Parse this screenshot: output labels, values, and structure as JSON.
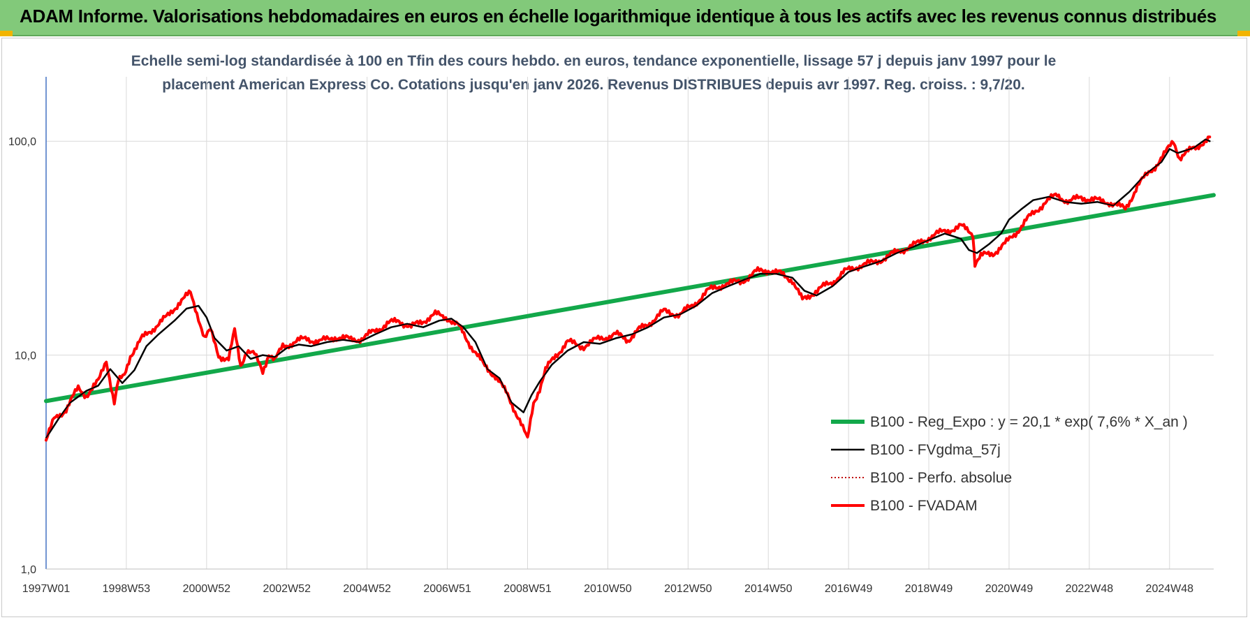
{
  "header": {
    "title": "ADAM Informe. Valorisations hebdomadaires en euros en échelle logarithmique identique à tous les actifs avec les revenus connus distribués"
  },
  "colors": {
    "banner": "#82c97a",
    "subtitle": "#44546a",
    "reg_expo": "#12a84a",
    "fvgdma": "#000000",
    "perfo": "#c00000",
    "fvadam": "#ff0000",
    "corner": "#f2b400"
  },
  "chart_data": {
    "type": "line",
    "title_line1": "Echelle semi-log standardisée à 100 en Tfin des cours hebdo. en euros, tendance exponentielle, lissage 57 j depuis janv 1997 pour le",
    "title_line2": "placement American Express Co. Cotations jusqu'en janv 2026. Revenus DISTRIBUES depuis avr 1997. Reg. croiss. : 9,7/20.",
    "y_scale": "log",
    "ylim": [
      1,
      200
    ],
    "y_ticks": [
      {
        "value": 1,
        "label": "1,0"
      },
      {
        "value": 10,
        "label": "10,0"
      },
      {
        "value": 100,
        "label": "100,0"
      }
    ],
    "xlim": [
      1997.0,
      2026.1
    ],
    "x_ticks": [
      {
        "value": 1997.0,
        "label": "1997W01"
      },
      {
        "value": 1999.0,
        "label": "1998W53"
      },
      {
        "value": 2001.0,
        "label": "2000W52"
      },
      {
        "value": 2003.0,
        "label": "2002W52"
      },
      {
        "value": 2005.0,
        "label": "2004W52"
      },
      {
        "value": 2007.0,
        "label": "2006W51"
      },
      {
        "value": 2009.0,
        "label": "2008W51"
      },
      {
        "value": 2011.0,
        "label": "2010W50"
      },
      {
        "value": 2013.0,
        "label": "2012W50"
      },
      {
        "value": 2015.0,
        "label": "2014W50"
      },
      {
        "value": 2017.0,
        "label": "2016W49"
      },
      {
        "value": 2019.0,
        "label": "2018W49"
      },
      {
        "value": 2021.0,
        "label": "2020W49"
      },
      {
        "value": 2023.0,
        "label": "2022W48"
      },
      {
        "value": 2025.0,
        "label": "2024W48"
      }
    ],
    "grid": true,
    "legend_position": "bottom-right",
    "series": [
      {
        "name": "B100 - Reg_Expo : y = 20,1 * exp( 7,6% *  X_an )",
        "style": "thick-green",
        "x": [
          1997.0,
          2026.1
        ],
        "y": [
          6.1,
          56.0
        ]
      },
      {
        "name": "B100 - FVgdma_57j",
        "style": "black",
        "x": [
          1997.0,
          1997.3,
          1997.6,
          1998.0,
          1998.3,
          1998.6,
          1998.9,
          1999.2,
          1999.5,
          1999.8,
          2000.2,
          2000.5,
          2000.8,
          2001.0,
          2001.2,
          2001.5,
          2001.8,
          2002.1,
          2002.4,
          2002.7,
          2003.0,
          2003.3,
          2003.6,
          2004.0,
          2004.4,
          2004.8,
          2005.2,
          2005.6,
          2006.0,
          2006.4,
          2006.8,
          2007.1,
          2007.4,
          2007.7,
          2008.0,
          2008.3,
          2008.6,
          2008.9,
          2009.1,
          2009.3,
          2009.6,
          2010.0,
          2010.4,
          2010.8,
          2011.2,
          2011.6,
          2012.0,
          2012.4,
          2012.8,
          2013.2,
          2013.6,
          2014.0,
          2014.4,
          2014.8,
          2015.2,
          2015.6,
          2015.9,
          2016.2,
          2016.6,
          2017.0,
          2017.4,
          2017.8,
          2018.2,
          2018.6,
          2019.0,
          2019.4,
          2019.8,
          2020.0,
          2020.2,
          2020.5,
          2020.8,
          2021.0,
          2021.3,
          2021.6,
          2022.0,
          2022.4,
          2022.8,
          2023.2,
          2023.6,
          2024.0,
          2024.4,
          2024.8,
          2025.0,
          2025.2,
          2025.6,
          2025.9,
          2026.0
        ],
        "y": [
          4.1,
          5.0,
          6.0,
          6.8,
          7.2,
          8.6,
          7.4,
          8.5,
          11.0,
          12.5,
          14.5,
          16.5,
          17.0,
          15.0,
          12.0,
          10.5,
          11.0,
          9.6,
          10.0,
          9.8,
          10.8,
          11.2,
          11.0,
          11.5,
          11.8,
          11.5,
          12.5,
          13.5,
          14.0,
          13.5,
          14.5,
          14.8,
          13.5,
          11.5,
          8.6,
          7.8,
          6.0,
          5.4,
          6.5,
          7.5,
          9.0,
          10.5,
          11.5,
          11.3,
          12.0,
          12.5,
          13.5,
          15.0,
          15.5,
          17.0,
          19.5,
          21.0,
          22.5,
          24.0,
          24.0,
          23.0,
          20.0,
          19.0,
          21.0,
          24.5,
          26.0,
          27.5,
          30.0,
          32.0,
          34.5,
          37.0,
          35.0,
          31.0,
          30.0,
          33.0,
          37.0,
          43.0,
          48.0,
          53.0,
          55.0,
          52.0,
          51.0,
          52.0,
          50.0,
          58.0,
          70.0,
          80.0,
          92.0,
          88.0,
          93.0,
          102.0,
          100.0
        ]
      },
      {
        "name": "B100 - Perfo. absolue",
        "style": "dotted-darkred",
        "x": [],
        "y": []
      },
      {
        "name": "B100 - FVADAM",
        "style": "thick-red",
        "x": [
          1997.0,
          1997.2,
          1997.5,
          1997.8,
          1998.0,
          1998.3,
          1998.5,
          1998.7,
          1998.8,
          1998.95,
          1999.1,
          1999.4,
          1999.7,
          2000.0,
          2000.3,
          2000.6,
          2000.8,
          2000.95,
          2001.1,
          2001.3,
          2001.55,
          2001.7,
          2001.85,
          2002.0,
          2002.2,
          2002.4,
          2002.55,
          2002.7,
          2002.9,
          2003.2,
          2003.5,
          2003.8,
          2004.2,
          2004.6,
          2004.9,
          2005.2,
          2005.5,
          2005.8,
          2006.1,
          2006.4,
          2006.7,
          2007.0,
          2007.3,
          2007.6,
          2007.9,
          2008.2,
          2008.5,
          2008.8,
          2009.0,
          2009.15,
          2009.3,
          2009.45,
          2009.7,
          2010.0,
          2010.4,
          2010.8,
          2011.2,
          2011.5,
          2011.75,
          2012.0,
          2012.4,
          2012.8,
          2013.1,
          2013.5,
          2013.9,
          2014.3,
          2014.7,
          2015.0,
          2015.3,
          2015.6,
          2015.85,
          2016.1,
          2016.3,
          2016.6,
          2016.9,
          2017.2,
          2017.6,
          2018.0,
          2018.3,
          2018.7,
          2019.0,
          2019.4,
          2019.8,
          2020.1,
          2020.15,
          2020.3,
          2020.6,
          2020.9,
          2021.2,
          2021.5,
          2021.9,
          2022.2,
          2022.5,
          2022.8,
          2023.1,
          2023.5,
          2023.9,
          2024.2,
          2024.6,
          2024.9,
          2025.1,
          2025.25,
          2025.5,
          2025.8,
          2026.0
        ],
        "y": [
          4.0,
          5.0,
          5.6,
          7.0,
          6.5,
          7.5,
          9.5,
          6.0,
          7.5,
          8.0,
          10.0,
          12.0,
          13.5,
          15.0,
          17.5,
          19.5,
          15.0,
          12.0,
          13.0,
          10.0,
          9.5,
          13.0,
          9.0,
          10.5,
          10.0,
          8.4,
          10.2,
          9.4,
          11.0,
          11.5,
          12.0,
          11.5,
          12.2,
          11.8,
          12.0,
          13.0,
          14.0,
          14.5,
          13.5,
          14.5,
          15.5,
          15.0,
          13.5,
          11.0,
          9.0,
          8.0,
          6.5,
          5.0,
          4.0,
          6.0,
          7.0,
          8.5,
          10.0,
          11.5,
          11.0,
          12.0,
          12.5,
          11.8,
          13.0,
          14.0,
          16.0,
          15.5,
          17.0,
          20.0,
          21.5,
          22.0,
          24.5,
          25.0,
          24.0,
          22.5,
          18.0,
          19.5,
          20.5,
          22.0,
          24.5,
          26.0,
          27.0,
          29.0,
          31.0,
          33.0,
          35.5,
          38.0,
          40.0,
          37.0,
          27.0,
          29.0,
          30.0,
          33.0,
          38.0,
          44.0,
          52.0,
          56.0,
          52.0,
          55.0,
          53.0,
          52.0,
          48.0,
          62.0,
          75.0,
          88.0,
          100.0,
          84.0,
          90.0,
          98.0,
          103.0
        ]
      }
    ]
  }
}
